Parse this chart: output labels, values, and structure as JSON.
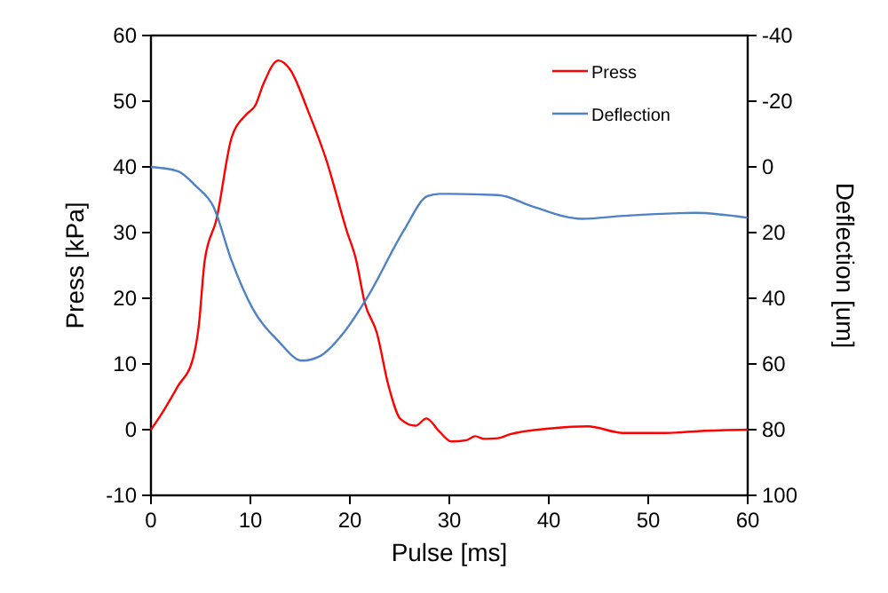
{
  "chart_data": {
    "type": "line",
    "xlabel": "Pulse [ms]",
    "ylabel": "Press [kPa]",
    "y2label": "Deflection [um]",
    "xlim": [
      0,
      60
    ],
    "xticks": [
      0,
      10,
      20,
      30,
      40,
      50,
      60
    ],
    "ylim": [
      -10,
      60
    ],
    "yticks": [
      -10,
      0,
      10,
      20,
      30,
      40,
      50,
      60
    ],
    "y2lim": [
      100,
      -40
    ],
    "y2ticks": [
      -40,
      -20,
      0,
      20,
      40,
      60,
      80,
      100
    ],
    "grid": false,
    "legend": "top right",
    "marker": "none",
    "line_style": "solid",
    "series": [
      {
        "name": "Press",
        "color": "#ff0000",
        "x": [
          0,
          0.9,
          2.7,
          4.2,
          4.8,
          5.4,
          6.6,
          8.1,
          9.6,
          10.5,
          11.3,
          12.8,
          14.0,
          15.8,
          17.6,
          19.7,
          20.6,
          21.5,
          22.7,
          23.9,
          25.1,
          26.6,
          27.7,
          29.0,
          30.2,
          31.7,
          32.6,
          33.5,
          34.9,
          36.1,
          40.3,
          43.9,
          47.5,
          51.7,
          55.3,
          60
        ],
        "values": [
          0,
          2.0,
          6.6,
          10.7,
          15.7,
          25.7,
          32.1,
          44.4,
          48.0,
          49.4,
          52.6,
          56.2,
          54.8,
          48.5,
          41.2,
          30.2,
          26,
          19.3,
          14.8,
          6.6,
          1.6,
          0.6,
          1.7,
          -0.3,
          -1.8,
          -1.6,
          -1.0,
          -1.4,
          -1.3,
          -0.7,
          0.2,
          0.5,
          -0.5,
          -0.5,
          -0.2,
          0
        ]
      },
      {
        "name": "Deflection",
        "color": "#4f81c7",
        "axis": "y2",
        "x": [
          0,
          2.7,
          4.5,
          6.3,
          8.1,
          10.2,
          12.8,
          15.2,
          17,
          19.4,
          21.8,
          25.4,
          27.8,
          29,
          34.9,
          38.5,
          43.3,
          47.5,
          54.7,
          60
        ],
        "values": [
          0,
          1.3,
          5.8,
          12.2,
          28.5,
          43,
          53,
          59,
          57.6,
          50.4,
          39.5,
          19.5,
          8.9,
          8.2,
          8.6,
          12.2,
          15.8,
          14.9,
          14,
          15.5
        ]
      }
    ]
  }
}
